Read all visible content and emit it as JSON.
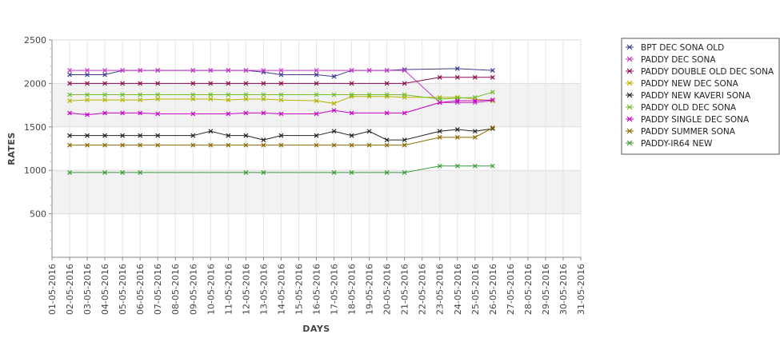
{
  "chart_data": {
    "type": "line",
    "title": "",
    "xlabel": "DAYS",
    "ylabel": "RATES",
    "ylim": [
      0,
      2500
    ],
    "yticks": [
      500,
      1000,
      1500,
      2000,
      2500
    ],
    "grid": "horizontal alternating bands",
    "legend_position": "right",
    "categories": [
      "01-05-2016",
      "02-05-2016",
      "03-05-2016",
      "04-05-2016",
      "05-05-2016",
      "06-05-2016",
      "07-05-2016",
      "08-05-2016",
      "09-05-2016",
      "10-05-2016",
      "11-05-2016",
      "12-05-2016",
      "13-05-2016",
      "14-05-2016",
      "15-05-2016",
      "16-05-2016",
      "17-05-2016",
      "18-05-2016",
      "19-05-2016",
      "20-05-2016",
      "21-05-2016",
      "22-05-2016",
      "23-05-2016",
      "24-05-2016",
      "25-05-2016",
      "26-05-2016",
      "27-05-2016",
      "28-05-2016",
      "29-05-2016",
      "30-05-2016",
      "31-05-2016"
    ],
    "series": [
      {
        "name": "BPT DEC SONA OLD",
        "color": "#3b3b8f",
        "points": [
          [
            1,
            2100
          ],
          [
            2,
            2100
          ],
          [
            3,
            2100
          ],
          [
            4,
            2150
          ],
          [
            5,
            2150
          ],
          [
            6,
            2150
          ],
          [
            8,
            2150
          ],
          [
            9,
            2150
          ],
          [
            10,
            2150
          ],
          [
            11,
            2150
          ],
          [
            12,
            2130
          ],
          [
            13,
            2100
          ],
          [
            15,
            2100
          ],
          [
            16,
            2080
          ],
          [
            17,
            2150
          ],
          [
            18,
            2150
          ],
          [
            19,
            2150
          ],
          [
            20,
            2160
          ],
          [
            23,
            2170
          ],
          [
            25,
            2150
          ]
        ]
      },
      {
        "name": "PADDY DEC SONA",
        "color": "#c83ac8",
        "points": [
          [
            1,
            2150
          ],
          [
            2,
            2150
          ],
          [
            3,
            2150
          ],
          [
            4,
            2150
          ],
          [
            5,
            2150
          ],
          [
            6,
            2150
          ],
          [
            8,
            2150
          ],
          [
            9,
            2150
          ],
          [
            10,
            2150
          ],
          [
            11,
            2150
          ],
          [
            12,
            2150
          ],
          [
            13,
            2150
          ],
          [
            15,
            2150
          ],
          [
            17,
            2150
          ],
          [
            18,
            2150
          ],
          [
            19,
            2150
          ],
          [
            20,
            2150
          ],
          [
            22,
            1780
          ],
          [
            23,
            1780
          ],
          [
            24,
            1780
          ],
          [
            25,
            1800
          ]
        ]
      },
      {
        "name": "PADDY DOUBLE OLD DEC SONA",
        "color": "#8b0a50",
        "points": [
          [
            1,
            2000
          ],
          [
            2,
            2000
          ],
          [
            3,
            2000
          ],
          [
            4,
            2000
          ],
          [
            5,
            2000
          ],
          [
            6,
            2000
          ],
          [
            8,
            2000
          ],
          [
            9,
            2000
          ],
          [
            10,
            2000
          ],
          [
            11,
            2000
          ],
          [
            12,
            2000
          ],
          [
            13,
            2000
          ],
          [
            15,
            2000
          ],
          [
            17,
            2000
          ],
          [
            19,
            2000
          ],
          [
            20,
            2000
          ],
          [
            22,
            2070
          ],
          [
            23,
            2070
          ],
          [
            24,
            2070
          ],
          [
            25,
            2070
          ]
        ]
      },
      {
        "name": "PADDY NEW DEC SONA",
        "color": "#b8b400",
        "points": [
          [
            1,
            1800
          ],
          [
            2,
            1810
          ],
          [
            3,
            1810
          ],
          [
            4,
            1810
          ],
          [
            5,
            1810
          ],
          [
            6,
            1820
          ],
          [
            8,
            1820
          ],
          [
            9,
            1820
          ],
          [
            10,
            1810
          ],
          [
            11,
            1820
          ],
          [
            12,
            1820
          ],
          [
            13,
            1810
          ],
          [
            15,
            1800
          ],
          [
            16,
            1770
          ],
          [
            17,
            1850
          ],
          [
            18,
            1850
          ],
          [
            19,
            1850
          ],
          [
            20,
            1840
          ],
          [
            22,
            1840
          ],
          [
            23,
            1840
          ],
          [
            25,
            1800
          ]
        ]
      },
      {
        "name": "PADDY NEW KAVERI SONA",
        "color": "#222222",
        "points": [
          [
            1,
            1400
          ],
          [
            2,
            1400
          ],
          [
            3,
            1400
          ],
          [
            4,
            1400
          ],
          [
            5,
            1400
          ],
          [
            6,
            1400
          ],
          [
            8,
            1400
          ],
          [
            9,
            1450
          ],
          [
            10,
            1400
          ],
          [
            11,
            1400
          ],
          [
            12,
            1350
          ],
          [
            13,
            1400
          ],
          [
            15,
            1400
          ],
          [
            16,
            1450
          ],
          [
            17,
            1400
          ],
          [
            18,
            1450
          ],
          [
            19,
            1350
          ],
          [
            20,
            1350
          ],
          [
            22,
            1450
          ],
          [
            23,
            1470
          ],
          [
            24,
            1450
          ],
          [
            25,
            1480
          ]
        ]
      },
      {
        "name": "PADDY OLD DEC SONA",
        "color": "#6fbf2a",
        "points": [
          [
            1,
            1870
          ],
          [
            2,
            1870
          ],
          [
            3,
            1870
          ],
          [
            4,
            1870
          ],
          [
            5,
            1870
          ],
          [
            6,
            1870
          ],
          [
            8,
            1870
          ],
          [
            9,
            1870
          ],
          [
            10,
            1870
          ],
          [
            11,
            1870
          ],
          [
            12,
            1870
          ],
          [
            13,
            1870
          ],
          [
            15,
            1870
          ],
          [
            16,
            1870
          ],
          [
            17,
            1870
          ],
          [
            18,
            1870
          ],
          [
            19,
            1870
          ],
          [
            20,
            1870
          ],
          [
            22,
            1820
          ],
          [
            23,
            1830
          ],
          [
            24,
            1840
          ],
          [
            25,
            1900
          ]
        ]
      },
      {
        "name": "PADDY SINGLE DEC SONA",
        "color": "#c800c8",
        "points": [
          [
            1,
            1660
          ],
          [
            2,
            1640
          ],
          [
            3,
            1660
          ],
          [
            4,
            1660
          ],
          [
            5,
            1660
          ],
          [
            6,
            1650
          ],
          [
            8,
            1650
          ],
          [
            10,
            1650
          ],
          [
            11,
            1660
          ],
          [
            12,
            1660
          ],
          [
            13,
            1650
          ],
          [
            15,
            1650
          ],
          [
            16,
            1690
          ],
          [
            17,
            1660
          ],
          [
            19,
            1660
          ],
          [
            20,
            1660
          ],
          [
            22,
            1780
          ],
          [
            23,
            1800
          ],
          [
            24,
            1800
          ],
          [
            25,
            1810
          ]
        ]
      },
      {
        "name": "PADDY SUMMER SONA",
        "color": "#8b6a00",
        "points": [
          [
            1,
            1290
          ],
          [
            2,
            1290
          ],
          [
            3,
            1290
          ],
          [
            4,
            1290
          ],
          [
            5,
            1290
          ],
          [
            6,
            1290
          ],
          [
            8,
            1290
          ],
          [
            9,
            1290
          ],
          [
            10,
            1290
          ],
          [
            11,
            1290
          ],
          [
            12,
            1290
          ],
          [
            13,
            1290
          ],
          [
            15,
            1290
          ],
          [
            16,
            1290
          ],
          [
            17,
            1290
          ],
          [
            18,
            1290
          ],
          [
            19,
            1290
          ],
          [
            20,
            1290
          ],
          [
            22,
            1380
          ],
          [
            23,
            1380
          ],
          [
            24,
            1380
          ],
          [
            25,
            1490
          ]
        ]
      },
      {
        "name": "PADDY-IR64 NEW",
        "color": "#3a9a3a",
        "points": [
          [
            1,
            975
          ],
          [
            3,
            975
          ],
          [
            4,
            975
          ],
          [
            5,
            975
          ],
          [
            11,
            975
          ],
          [
            12,
            975
          ],
          [
            16,
            975
          ],
          [
            17,
            975
          ],
          [
            19,
            975
          ],
          [
            20,
            975
          ],
          [
            22,
            1050
          ],
          [
            23,
            1050
          ],
          [
            24,
            1050
          ],
          [
            25,
            1050
          ]
        ]
      }
    ]
  }
}
